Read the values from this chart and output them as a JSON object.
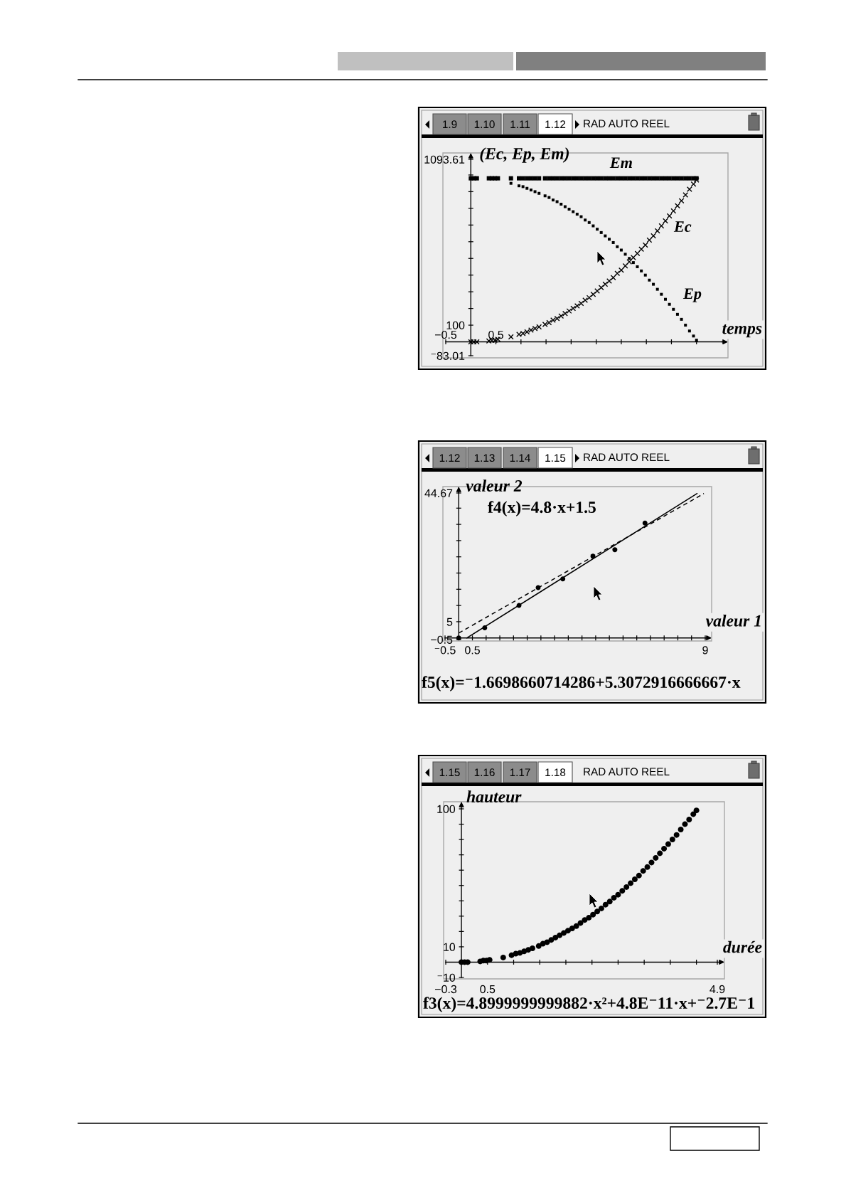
{
  "chart_data": [
    {
      "type": "scatter",
      "xlabel": "temps",
      "ylabel": "(Ec, Ep, Em)",
      "annotations": [
        "1.9",
        "1.10",
        "1.11",
        "1.12",
        "RAD AUTO REEL"
      ],
      "x": [
        0,
        0.06,
        0.12,
        0.36,
        0.42,
        0.48,
        0.54,
        0.8,
        0.96,
        1.04,
        1.12,
        1.2,
        1.28,
        1.36,
        1.48,
        1.56,
        1.64,
        1.72,
        1.8,
        1.88,
        1.96,
        2.04,
        2.12,
        2.2,
        2.28,
        2.36,
        2.44,
        2.52,
        2.6,
        2.68,
        2.76,
        2.84,
        2.92,
        3,
        3.08,
        3.16,
        3.24,
        3.32,
        3.4,
        3.48,
        3.56,
        3.64,
        3.72,
        3.8,
        3.88,
        3.96,
        4.04,
        4.12,
        4.2,
        4.28,
        4.36,
        4.44,
        4.5
      ],
      "series": [
        {
          "name": "Em",
          "color": "#000000",
          "marker": "square",
          "values": [
            980,
            980,
            980,
            980,
            980,
            980,
            980,
            980,
            980,
            980,
            980,
            980,
            980,
            980,
            980,
            980,
            980,
            980,
            980,
            980,
            980,
            980,
            980,
            980,
            980,
            980,
            980,
            980,
            980,
            980,
            980,
            980,
            980,
            980,
            980,
            980,
            980,
            980,
            980,
            980,
            980,
            980,
            980,
            980,
            980,
            980,
            980,
            980,
            980,
            980,
            980,
            980,
            980
          ]
        },
        {
          "name": "Ec",
          "color": "#000000",
          "marker": "cross",
          "values": [
            0,
            0,
            0,
            5,
            10,
            10,
            15,
            30,
            45,
            50,
            60,
            70,
            80,
            90,
            105,
            115,
            130,
            140,
            155,
            170,
            185,
            200,
            215,
            230,
            250,
            265,
            285,
            305,
            325,
            345,
            365,
            385,
            410,
            430,
            455,
            480,
            505,
            530,
            555,
            580,
            610,
            635,
            665,
            695,
            725,
            755,
            785,
            815,
            845,
            880,
            915,
            945,
            970
          ]
        },
        {
          "name": "Ep",
          "color": "#000000",
          "marker": "square",
          "values": [
            null,
            null,
            null,
            null,
            null,
            null,
            null,
            950,
            935,
            930,
            920,
            910,
            900,
            890,
            875,
            865,
            850,
            840,
            825,
            810,
            795,
            780,
            765,
            750,
            730,
            715,
            695,
            675,
            655,
            635,
            615,
            595,
            570,
            550,
            525,
            500,
            475,
            450,
            425,
            400,
            370,
            345,
            315,
            285,
            255,
            225,
            195,
            165,
            135,
            100,
            65,
            35,
            10
          ]
        }
      ],
      "xlim": [
        -0.5,
        5
      ],
      "ylim": [
        -83.01,
        1093.61
      ],
      "xticks": [
        {
          "value": -0.5,
          "label": "−0.5"
        },
        0.5,
        {
          "value": 1,
          "label": null
        },
        {
          "value": 1.5,
          "label": null
        },
        {
          "value": 2,
          "label": null
        },
        {
          "value": 2.5,
          "label": null
        },
        {
          "value": 3,
          "label": null
        },
        {
          "value": 3.5,
          "label": null
        },
        {
          "value": 4,
          "label": null
        },
        {
          "value": 4.5,
          "label": null
        }
      ],
      "yticks": [
        {
          "value": -83.01,
          "label": "⁻83.01"
        },
        100,
        {
          "value": 200,
          "label": null
        },
        {
          "value": 300,
          "label": null
        },
        {
          "value": 400,
          "label": null
        },
        {
          "value": 500,
          "label": null
        },
        {
          "value": 600,
          "label": null
        },
        {
          "value": 700,
          "label": null
        },
        {
          "value": 800,
          "label": null
        },
        {
          "value": 900,
          "label": null
        },
        {
          "value": 1000,
          "label": null
        },
        1093.61
      ]
    },
    {
      "type": "scatter",
      "xlabel": "valeur 1",
      "ylabel": "valeur 2",
      "annotations": [
        "1.12",
        "1.13",
        "1.14",
        "1.15",
        "RAD AUTO REEL",
        "f4(x)=4.8·x+1.5",
        "f5(x)=⁻1.6698660714286+5.3072916666667·x"
      ],
      "series": [
        {
          "type": "line",
          "color": "#000000",
          "line_style": "solid",
          "x": [
            0.3,
            8.7
          ],
          "values": [
            0,
            44.5
          ]
        },
        {
          "type": "line",
          "color": "#000000",
          "line_style": "dashed",
          "x": [
            0,
            8.95
          ],
          "values": [
            1.5,
            44.5
          ]
        },
        {
          "color": "#000000",
          "marker": "circle",
          "x": [
            0,
            0.95,
            2.2,
            2.9,
            3.8,
            4.9,
            5.7,
            6.8
          ],
          "values": [
            0,
            3.1,
            10,
            15.5,
            18.2,
            25.2,
            27.2,
            35.4
          ]
        }
      ],
      "xlim": [
        -0.5,
        9
      ],
      "ylim": [
        -0.5,
        44.67
      ],
      "xticks": [
        {
          "value": -0.5,
          "label": "⁻0.5"
        },
        0.5,
        {
          "value": 1,
          "label": null
        },
        {
          "value": 1.5,
          "label": null
        },
        {
          "value": 2,
          "label": null
        },
        {
          "value": 2.5,
          "label": null
        },
        {
          "value": 3,
          "label": null
        },
        {
          "value": 3.5,
          "label": null
        },
        {
          "value": 4,
          "label": null
        },
        {
          "value": 4.5,
          "label": null
        },
        {
          "value": 5,
          "label": null
        },
        {
          "value": 5.5,
          "label": null
        },
        {
          "value": 6,
          "label": null
        },
        {
          "value": 6.5,
          "label": null
        },
        {
          "value": 7,
          "label": null
        },
        {
          "value": 7.5,
          "label": null
        },
        {
          "value": 8,
          "label": null
        },
        {
          "value": 8.5,
          "label": null
        },
        9
      ],
      "yticks": [
        {
          "value": -0.5,
          "label": "−0.5"
        },
        5,
        {
          "value": 10,
          "label": null
        },
        {
          "value": 15,
          "label": null
        },
        {
          "value": 20,
          "label": null
        },
        {
          "value": 25,
          "label": null
        },
        {
          "value": 30,
          "label": null
        },
        {
          "value": 35,
          "label": null
        },
        {
          "value": 40,
          "label": null
        },
        44.67
      ]
    },
    {
      "type": "scatter",
      "xlabel": "durée",
      "ylabel": "hauteur",
      "annotations": [
        "1.15",
        "1.16",
        "1.17",
        "1.18",
        "RAD AUTO REEL",
        "f3(x)=4.8999999999882·x²+4.8E⁻11·x+⁻2.7E⁻1"
      ],
      "x": [
        0,
        0.06,
        0.12,
        0.36,
        0.42,
        0.48,
        0.54,
        0.8,
        0.96,
        1.04,
        1.12,
        1.2,
        1.28,
        1.36,
        1.48,
        1.56,
        1.64,
        1.72,
        1.8,
        1.88,
        1.96,
        2.04,
        2.12,
        2.2,
        2.28,
        2.36,
        2.44,
        2.52,
        2.6,
        2.68,
        2.76,
        2.84,
        2.92,
        3,
        3.08,
        3.16,
        3.24,
        3.32,
        3.4,
        3.48,
        3.56,
        3.64,
        3.72,
        3.8,
        3.88,
        3.96,
        4.04,
        4.12,
        4.2,
        4.28,
        4.36,
        4.44,
        4.5
      ],
      "series": [
        {
          "color": "#000000",
          "marker": "circle",
          "values": [
            0,
            0,
            0,
            0.5,
            1,
            1,
            1.5,
            3,
            4.5,
            5.5,
            6,
            7,
            8,
            9,
            10.5,
            12,
            13,
            14.5,
            16,
            17.5,
            19,
            20.5,
            22,
            23.5,
            25.5,
            27.5,
            29,
            31,
            33,
            35,
            37.5,
            39.5,
            42,
            44,
            46.5,
            49,
            51.5,
            54,
            56.5,
            59.5,
            62,
            65,
            68,
            71,
            74,
            77,
            80,
            83,
            86.5,
            90,
            93,
            96.5,
            99
          ]
        }
      ],
      "xlim": [
        -0.3,
        4.9
      ],
      "ylim": [
        -10,
        100
      ],
      "xticks": [
        {
          "value": -0.3,
          "label": "−0.3"
        },
        0.5,
        {
          "value": 1,
          "label": null
        },
        {
          "value": 1.5,
          "label": null
        },
        {
          "value": 2,
          "label": null
        },
        {
          "value": 2.5,
          "label": null
        },
        {
          "value": 3,
          "label": null
        },
        {
          "value": 3.5,
          "label": null
        },
        {
          "value": 4,
          "label": null
        },
        {
          "value": 4.5,
          "label": null
        },
        4.9
      ],
      "yticks": [
        {
          "value": -10,
          "label": "⁻10"
        },
        10,
        {
          "value": 20,
          "label": null
        },
        {
          "value": 30,
          "label": null
        },
        {
          "value": 40,
          "label": null
        },
        {
          "value": 50,
          "label": null
        },
        {
          "value": 60,
          "label": null
        },
        {
          "value": 70,
          "label": null
        },
        {
          "value": 80,
          "label": null
        },
        {
          "value": 90,
          "label": null
        },
        100
      ]
    }
  ]
}
